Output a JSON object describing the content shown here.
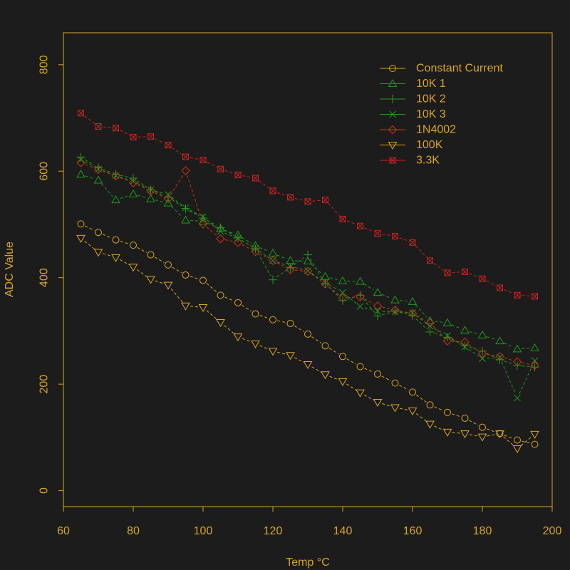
{
  "chart_data": {
    "type": "line",
    "title": "",
    "xlabel": "Temp °C",
    "ylabel": "ADC Value",
    "xlim": [
      60,
      200
    ],
    "ylim": [
      -30,
      860
    ],
    "x_ticks": [
      "60",
      "80",
      "100",
      "120",
      "140",
      "160",
      "180",
      "200"
    ],
    "y_ticks": [
      "0",
      "200",
      "400",
      "600",
      "800"
    ],
    "legend_position": "top-right",
    "x": [
      65,
      70,
      75,
      80,
      85,
      90,
      95,
      100,
      105,
      110,
      115,
      120,
      125,
      130,
      135,
      140,
      145,
      150,
      155,
      160,
      165,
      170,
      175,
      180,
      185,
      190,
      195
    ],
    "series": [
      {
        "name": "Constant Current",
        "marker": "circle",
        "color": "#d9a627",
        "values": [
          501,
          485,
          471,
          461,
          443,
          424,
          405,
          395,
          367,
          353,
          332,
          321,
          314,
          294,
          272,
          252,
          233,
          219,
          202,
          185,
          161,
          147,
          136,
          119,
          107,
          95,
          87
        ]
      },
      {
        "name": "10K 1",
        "marker": "triangle",
        "color": "#1f9a1f",
        "values": [
          594,
          583,
          546,
          557,
          548,
          540,
          508,
          506,
          492,
          480,
          460,
          446,
          432,
          431,
          402,
          394,
          393,
          372,
          358,
          355,
          319,
          315,
          301,
          292,
          281,
          266,
          268
        ]
      },
      {
        "name": "10K 2",
        "marker": "plus",
        "color": "#1f9a1f",
        "values": [
          626,
          607,
          594,
          587,
          565,
          551,
          530,
          512,
          494,
          475,
          454,
          396,
          419,
          443,
          389,
          357,
          367,
          328,
          337,
          329,
          298,
          288,
          272,
          262,
          246,
          235,
          232
        ]
      },
      {
        "name": "10K 3",
        "marker": "x",
        "color": "#1f9a1f",
        "values": [
          622,
          604,
          592,
          581,
          565,
          556,
          531,
          514,
          487,
          474,
          455,
          432,
          421,
          413,
          391,
          372,
          346,
          337,
          336,
          334,
          309,
          291,
          270,
          248,
          250,
          174,
          244
        ]
      },
      {
        "name": "1N4002",
        "marker": "diamond",
        "color": "#cc3311",
        "values": [
          616,
          603,
          591,
          578,
          563,
          548,
          601,
          501,
          473,
          466,
          449,
          432,
          415,
          412,
          388,
          362,
          364,
          347,
          339,
          333,
          315,
          281,
          279,
          257,
          252,
          242,
          235
        ]
      },
      {
        "name": "100K",
        "marker": "down-triangle",
        "color": "#d9a627",
        "values": [
          474,
          448,
          438,
          420,
          397,
          386,
          347,
          344,
          316,
          289,
          276,
          262,
          254,
          237,
          218,
          205,
          184,
          166,
          156,
          150,
          125,
          110,
          107,
          101,
          107,
          79,
          106
        ]
      },
      {
        "name": "3.3K",
        "marker": "box-x",
        "color": "#cc2222",
        "values": [
          709,
          684,
          681,
          664,
          665,
          649,
          627,
          621,
          604,
          593,
          587,
          563,
          551,
          543,
          546,
          510,
          497,
          483,
          478,
          466,
          432,
          409,
          411,
          398,
          381,
          367,
          365
        ]
      }
    ]
  },
  "colors": {
    "background": "#1c1c1c",
    "axis": "#d9a627"
  }
}
